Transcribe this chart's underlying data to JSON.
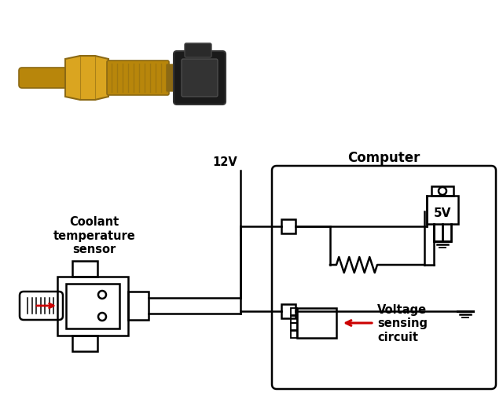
{
  "bg_color": "#ffffff",
  "line_color": "#000000",
  "red_color": "#cc0000",
  "brass_color": "#B8860B",
  "brass_light": "#DAA520",
  "brass_dark": "#8B6914",
  "black_color": "#1a1a1a",
  "computer_label": "Computer",
  "voltage_12v_label": "12V",
  "voltage_5v_label": "5V",
  "sensor_label": "Coolant\ntemperature\nsensor",
  "vsc_label": "Voltage\nsensing\ncircuit",
  "label_fontsize": 10,
  "bold_fontsize": 10.5
}
